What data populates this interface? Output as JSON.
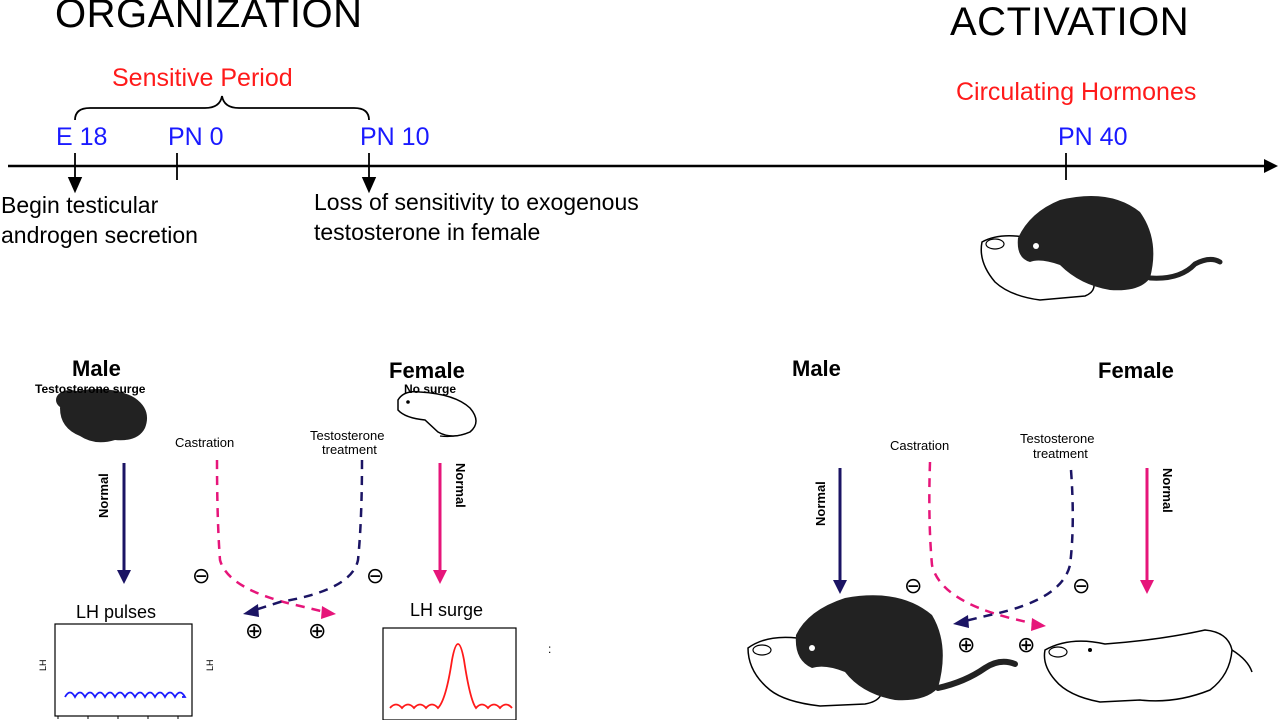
{
  "headers": {
    "organization": "ORGANIZATION",
    "activation": "ACTIVATION"
  },
  "timeline": {
    "sensitive_period": "Sensitive Period",
    "circulating_hormones": "Circulating Hormones",
    "marks": [
      "E 18",
      "PN 0",
      "PN 10",
      "PN 40"
    ],
    "notes": {
      "e18": "Begin testicular androgen secretion",
      "pn10": "Loss of sensitivity to exogenous testosterone in female"
    }
  },
  "organization_panel": {
    "male": {
      "label": "Male",
      "sub": "Testosterone surge"
    },
    "female": {
      "label": "Female",
      "sub": "No surge"
    },
    "castration": "Castration",
    "testosterone_treatment": [
      "Testosterone",
      "treatment"
    ],
    "normal_left": "Normal",
    "normal_right": "Normal",
    "lh_pulses": "LH pulses",
    "lh_surge": "LH surge",
    "axis_lh": "LH",
    "minus": "⊖",
    "plus": "⊕",
    "colon": ":"
  },
  "activation_panel": {
    "male": "Male",
    "female": "Female",
    "castration": "Castration",
    "testosterone_treatment": [
      "Testosterone",
      "treatment"
    ],
    "normal_left": "Normal",
    "normal_right": "Normal"
  },
  "colors": {
    "navy": "#1b1464",
    "magenta": "#e6157a",
    "red_text": "#ff1a1a",
    "blue_text": "#1a1aff",
    "pulse": "#1a1aff",
    "surge": "#ff1a1a"
  }
}
